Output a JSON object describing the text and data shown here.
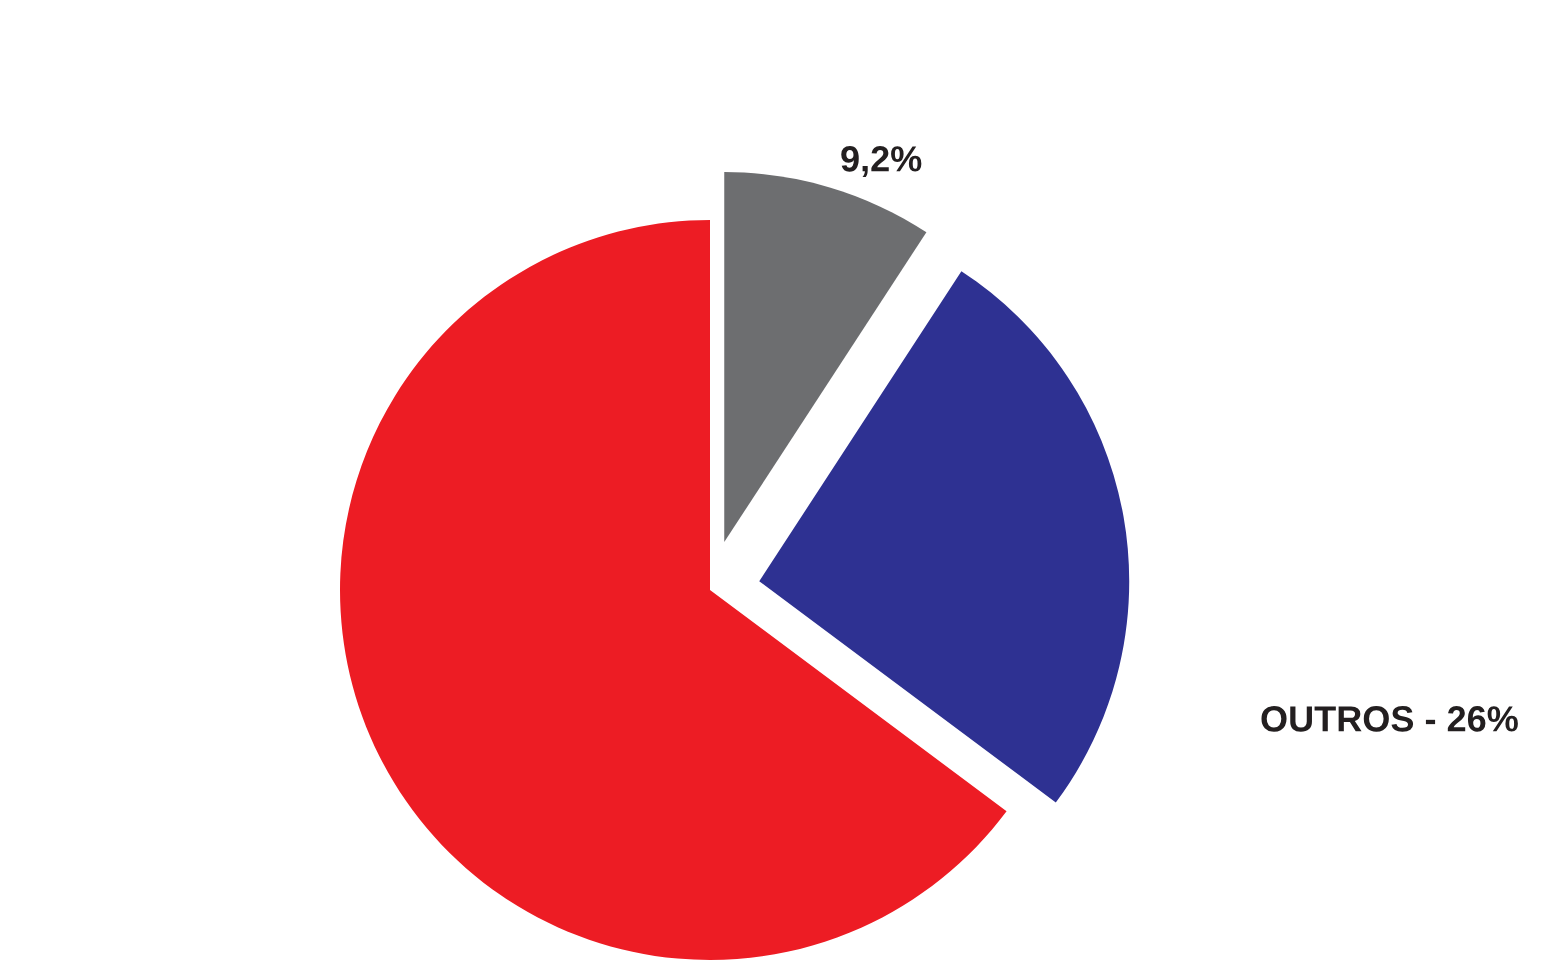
{
  "chart_data": {
    "type": "pie",
    "categories": [
      null,
      "OUTROS - 26%",
      null
    ],
    "values": [
      9.2,
      26,
      64.8
    ],
    "colors": [
      "#6d6e70",
      "#2e3192",
      "#ed1c24"
    ],
    "value_labels": [
      "9,2%",
      null,
      null
    ]
  }
}
